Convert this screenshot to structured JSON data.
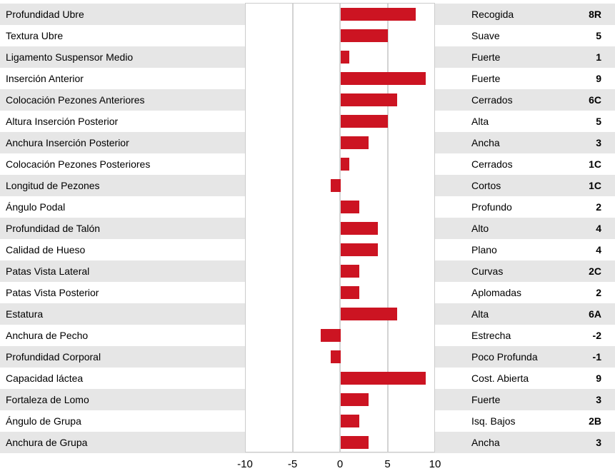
{
  "chart_data": {
    "type": "bar",
    "orientation": "horizontal",
    "xlim": [
      -10,
      10
    ],
    "xticks": [
      "-10",
      "-5",
      "0",
      "5",
      "10"
    ],
    "grid": true,
    "colors": {
      "bar": "#cc1422",
      "band": "#e6e6e6"
    },
    "rows": [
      {
        "trait": "Profundidad Ubre",
        "value": 8,
        "description": "Recogida",
        "score": "8R"
      },
      {
        "trait": "Textura Ubre",
        "value": 5,
        "description": "Suave",
        "score": "5"
      },
      {
        "trait": "Ligamento Suspensor Medio",
        "value": 1,
        "description": "Fuerte",
        "score": "1"
      },
      {
        "trait": "Inserción Anterior",
        "value": 9,
        "description": "Fuerte",
        "score": "9"
      },
      {
        "trait": "Colocación Pezones Anteriores",
        "value": 6,
        "description": "Cerrados",
        "score": "6C"
      },
      {
        "trait": "Altura Inserción Posterior",
        "value": 5,
        "description": "Alta",
        "score": "5"
      },
      {
        "trait": "Anchura Inserción Posterior",
        "value": 3,
        "description": "Ancha",
        "score": "3"
      },
      {
        "trait": "Colocación Pezones Posteriores",
        "value": 1,
        "description": "Cerrados",
        "score": "1C"
      },
      {
        "trait": "Longitud de Pezones",
        "value": -1,
        "description": "Cortos",
        "score": "1C"
      },
      {
        "trait": "Ángulo Podal",
        "value": 2,
        "description": "Profundo",
        "score": "2"
      },
      {
        "trait": "Profundidad de Talón",
        "value": 4,
        "description": "Alto",
        "score": "4"
      },
      {
        "trait": "Calidad de Hueso",
        "value": 4,
        "description": "Plano",
        "score": "4"
      },
      {
        "trait": "Patas Vista Lateral",
        "value": 2,
        "description": "Curvas",
        "score": "2C"
      },
      {
        "trait": "Patas Vista Posterior",
        "value": 2,
        "description": "Aplomadas",
        "score": "2"
      },
      {
        "trait": "Estatura",
        "value": 6,
        "description": "Alta",
        "score": "6A"
      },
      {
        "trait": "Anchura de Pecho",
        "value": -2,
        "description": "Estrecha",
        "score": "-2"
      },
      {
        "trait": "Profundidad Corporal",
        "value": -1,
        "description": "Poco Profunda",
        "score": "-1"
      },
      {
        "trait": "Capacidad láctea",
        "value": 9,
        "description": "Cost. Abierta",
        "score": "9"
      },
      {
        "trait": "Fortaleza de Lomo",
        "value": 3,
        "description": "Fuerte",
        "score": "3"
      },
      {
        "trait": "Ángulo de Grupa",
        "value": 2,
        "description": "Isq. Bajos",
        "score": "2B"
      },
      {
        "trait": "Anchura de Grupa",
        "value": 3,
        "description": "Ancha",
        "score": "3"
      }
    ]
  }
}
